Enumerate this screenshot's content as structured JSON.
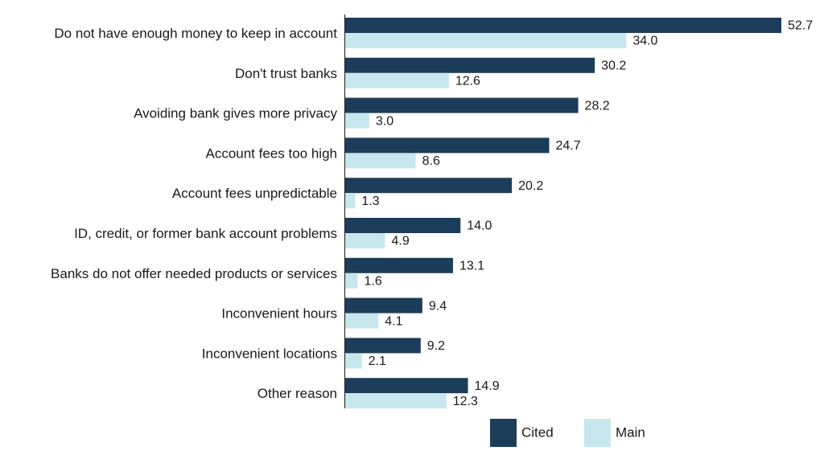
{
  "chart_data": {
    "type": "bar",
    "orientation": "horizontal",
    "categories": [
      "Do not have enough money to keep in account",
      "Don't trust banks",
      "Avoiding bank gives more privacy",
      "Account fees too high",
      "Account fees unpredictable",
      "ID, credit, or former bank account problems",
      "Banks do not offer needed products or services",
      "Inconvenient hours",
      "Inconvenient locations",
      "Other reason"
    ],
    "series": [
      {
        "name": "Cited",
        "color": "#1c3d5a",
        "values": [
          52.7,
          30.2,
          28.2,
          24.7,
          20.2,
          14.0,
          13.1,
          9.4,
          9.2,
          14.9
        ],
        "labels": [
          "52.7",
          "30.2",
          "28.2",
          "24.7",
          "20.2",
          "14.0",
          "13.1",
          "9.4",
          "9.2",
          "14.9"
        ]
      },
      {
        "name": "Main",
        "color": "#c8e6ee",
        "values": [
          34.0,
          12.6,
          3.0,
          8.6,
          1.3,
          4.9,
          1.6,
          4.1,
          2.1,
          12.3
        ],
        "labels": [
          "34.0",
          "12.6",
          "3.0",
          "8.6",
          "1.3",
          "4.9",
          "1.6",
          "4.1",
          "2.1",
          "12.3"
        ]
      }
    ],
    "title": "",
    "xlabel": "",
    "ylabel": "",
    "xlim": [
      0,
      52.7
    ],
    "grid": false,
    "legend_position": "bottom"
  }
}
